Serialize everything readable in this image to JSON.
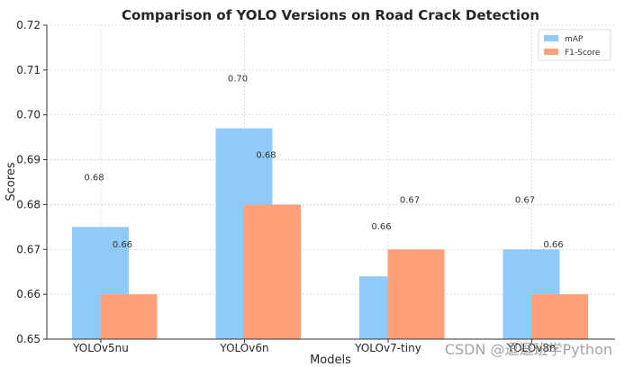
{
  "watermark": "CSDN @逗逗班学Python",
  "chart_data": {
    "type": "bar",
    "title": "Comparison of YOLO Versions on Road Crack Detection",
    "xlabel": "Models",
    "ylabel": "Scores",
    "ylim": [
      0.65,
      0.72
    ],
    "yticks": [
      "0.65",
      "0.66",
      "0.67",
      "0.68",
      "0.69",
      "0.70",
      "0.71",
      "0.72"
    ],
    "grid": true,
    "legend_position": "top-right",
    "categories": [
      "YOLOv5nu",
      "YOLOv6n",
      "YOLOv7-tiny",
      "YOLOv8n"
    ],
    "series": [
      {
        "name": "mAP",
        "color": "#90caf9",
        "values": [
          0.675,
          0.697,
          0.664,
          0.67
        ],
        "labels": [
          "0.68",
          "0.70",
          "0.66",
          "0.67"
        ]
      },
      {
        "name": "F1-Score",
        "color": "#ffa07a",
        "values": [
          0.66,
          0.68,
          0.67,
          0.66
        ],
        "labels": [
          "0.66",
          "0.68",
          "0.67",
          "0.66"
        ]
      }
    ]
  }
}
